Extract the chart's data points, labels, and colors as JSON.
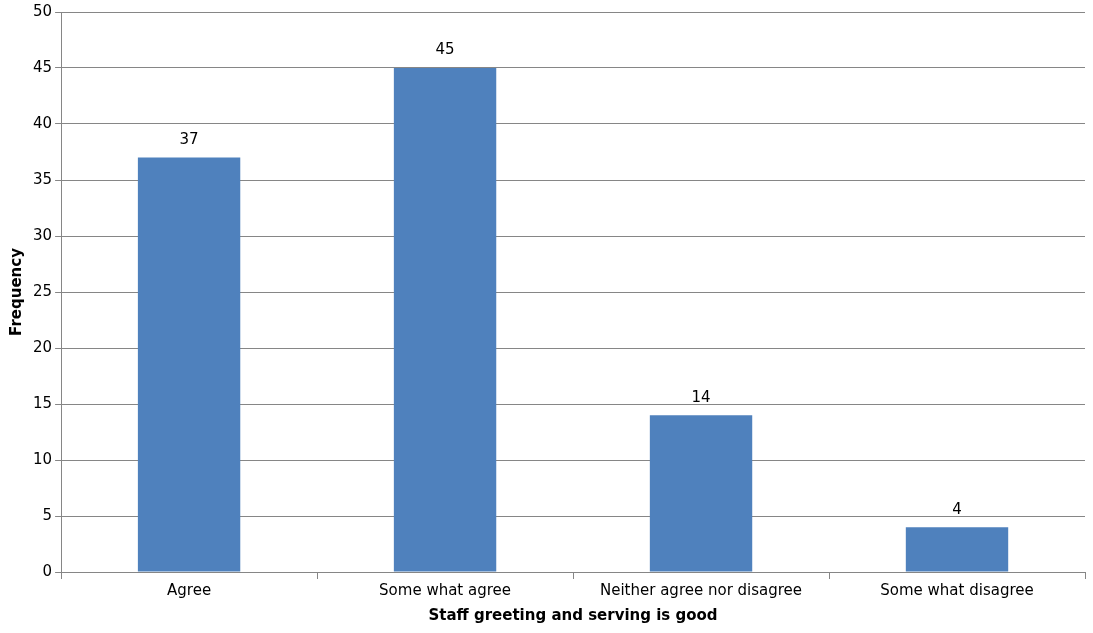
{
  "chart_data": {
    "type": "bar",
    "xlabel": "Staff greeting and serving is good",
    "ylabel": "Frequency",
    "categories": [
      "Agree",
      "Some what agree",
      "Neither agree nor disagree",
      "Some what disagree"
    ],
    "values": [
      37,
      45,
      14,
      4
    ],
    "color": "#4f81bd",
    "ylim": [
      0,
      50
    ],
    "yticks": [
      0,
      5,
      10,
      15,
      20,
      25,
      30,
      35,
      40,
      45,
      50
    ],
    "grid": "y",
    "legend": false,
    "data_labels": true
  }
}
